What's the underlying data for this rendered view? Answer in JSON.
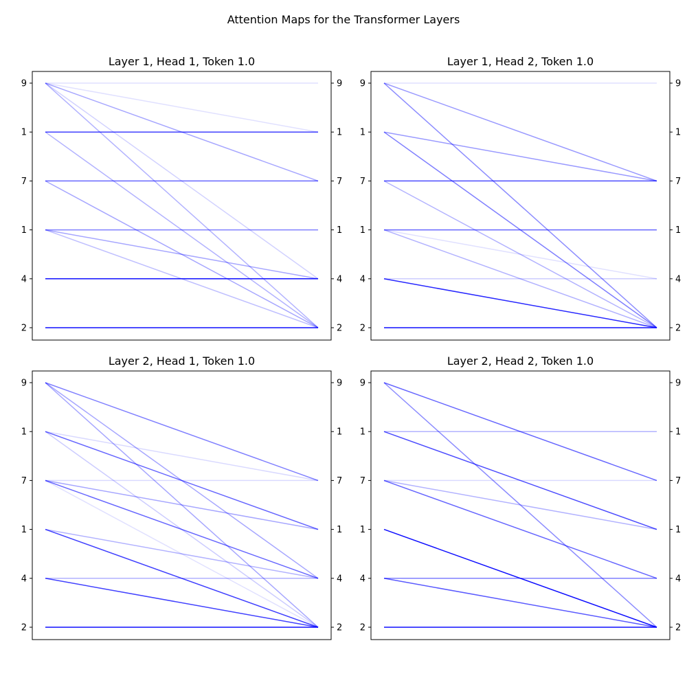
{
  "figure_title": "Attention Maps for the Transformer Layers",
  "line_color": "#0000ff",
  "chart_data": [
    {
      "type": "line",
      "title": "Layer 1, Head 1, Token 1.0",
      "tokens": [
        "9",
        "1",
        "7",
        "1",
        "4",
        "2"
      ],
      "edges": [
        {
          "from": "9",
          "to": "9",
          "weight": 0.12
        },
        {
          "from": "9",
          "to": "1",
          "weight": 0.12
        },
        {
          "from": "9",
          "to": "7",
          "weight": 0.35
        },
        {
          "from": "9",
          "to": "4",
          "weight": 0.18
        },
        {
          "from": "9",
          "to": "2",
          "weight": 0.3
        },
        {
          "from": "1",
          "to": "1",
          "weight": 0.75
        },
        {
          "from": "1",
          "to": "2",
          "weight": 0.3
        },
        {
          "from": "7",
          "to": "7",
          "weight": 0.6
        },
        {
          "from": "7",
          "to": "2",
          "weight": 0.35
        },
        {
          "from": "1b",
          "to": "1b",
          "weight": 0.5
        },
        {
          "from": "1b",
          "to": "4",
          "weight": 0.35
        },
        {
          "from": "1b",
          "to": "2",
          "weight": 0.25
        },
        {
          "from": "4",
          "to": "4",
          "weight": 0.95
        },
        {
          "from": "2",
          "to": "2",
          "weight": 0.95
        }
      ]
    },
    {
      "type": "line",
      "title": "Layer 1, Head 2, Token 1.0",
      "tokens": [
        "9",
        "1",
        "7",
        "1",
        "4",
        "2"
      ],
      "edges": [
        {
          "from": "9",
          "to": "9",
          "weight": 0.12
        },
        {
          "from": "9",
          "to": "7",
          "weight": 0.4
        },
        {
          "from": "9",
          "to": "2",
          "weight": 0.45
        },
        {
          "from": "1",
          "to": "7",
          "weight": 0.4
        },
        {
          "from": "1",
          "to": "2",
          "weight": 0.5
        },
        {
          "from": "7",
          "to": "7",
          "weight": 0.7
        },
        {
          "from": "7",
          "to": "2",
          "weight": 0.3
        },
        {
          "from": "1b",
          "to": "1b",
          "weight": 0.6
        },
        {
          "from": "1b",
          "to": "4",
          "weight": 0.12
        },
        {
          "from": "1b",
          "to": "2",
          "weight": 0.3
        },
        {
          "from": "4",
          "to": "4",
          "weight": 0.2
        },
        {
          "from": "4",
          "to": "2",
          "weight": 0.85
        },
        {
          "from": "2",
          "to": "2",
          "weight": 0.95
        }
      ]
    },
    {
      "type": "line",
      "title": "Layer 2, Head 1, Token 1.0",
      "tokens": [
        "9",
        "1",
        "7",
        "1",
        "4",
        "2"
      ],
      "edges": [
        {
          "from": "9",
          "to": "7",
          "weight": 0.5
        },
        {
          "from": "9",
          "to": "4",
          "weight": 0.35
        },
        {
          "from": "9",
          "to": "2",
          "weight": 0.35
        },
        {
          "from": "1",
          "to": "7",
          "weight": 0.15
        },
        {
          "from": "1",
          "to": "1b",
          "weight": 0.6
        },
        {
          "from": "1",
          "to": "2",
          "weight": 0.2
        },
        {
          "from": "7",
          "to": "7",
          "weight": 0.15
        },
        {
          "from": "7",
          "to": "1b",
          "weight": 0.35
        },
        {
          "from": "7",
          "to": "4",
          "weight": 0.6
        },
        {
          "from": "7",
          "to": "2",
          "weight": 0.12
        },
        {
          "from": "1b",
          "to": "4",
          "weight": 0.3
        },
        {
          "from": "1b",
          "to": "2",
          "weight": 0.75
        },
        {
          "from": "4",
          "to": "4",
          "weight": 0.3
        },
        {
          "from": "4",
          "to": "2",
          "weight": 0.75
        },
        {
          "from": "2",
          "to": "2",
          "weight": 0.95
        }
      ]
    },
    {
      "type": "line",
      "title": "Layer 2, Head 2, Token 1.0",
      "tokens": [
        "9",
        "1",
        "7",
        "1",
        "4",
        "2"
      ],
      "edges": [
        {
          "from": "9",
          "to": "7",
          "weight": 0.6
        },
        {
          "from": "9",
          "to": "2",
          "weight": 0.45
        },
        {
          "from": "1",
          "to": "1",
          "weight": 0.3
        },
        {
          "from": "1",
          "to": "1b",
          "weight": 0.7
        },
        {
          "from": "7",
          "to": "7",
          "weight": 0.15
        },
        {
          "from": "7",
          "to": "1b",
          "weight": 0.3
        },
        {
          "from": "7",
          "to": "4",
          "weight": 0.6
        },
        {
          "from": "1b",
          "to": "2",
          "weight": 0.95
        },
        {
          "from": "4",
          "to": "4",
          "weight": 0.5
        },
        {
          "from": "4",
          "to": "2",
          "weight": 0.65
        },
        {
          "from": "2",
          "to": "2",
          "weight": 0.95
        }
      ]
    }
  ]
}
